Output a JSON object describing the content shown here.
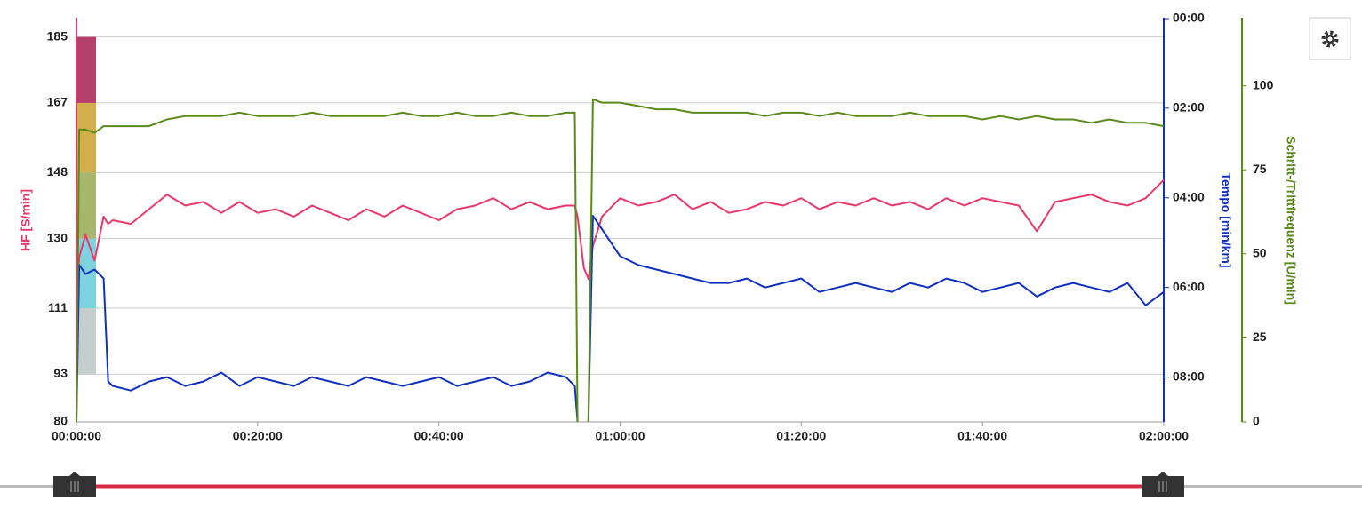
{
  "chart_data": {
    "type": "line",
    "y_label": "HF [S/min]",
    "y2_label": "Tempo [min/km]",
    "y3_label": "Schritt-/Trittfrequenz [U/min]",
    "y_color": "#e8386a",
    "y2_color": "#1030c0",
    "y3_color": "#5a8a1a",
    "xlim": [
      0,
      120
    ],
    "xticks": [
      {
        "value": 0,
        "label": "00:00:00"
      },
      {
        "value": 20,
        "label": "00:20:00"
      },
      {
        "value": 40,
        "label": "00:40:00"
      },
      {
        "value": 60,
        "label": "01:00:00"
      },
      {
        "value": 80,
        "label": "01:20:00"
      },
      {
        "value": 100,
        "label": "01:40:00"
      },
      {
        "value": 120,
        "label": "02:00:00"
      }
    ],
    "ylim": [
      80,
      190
    ],
    "yticks": [
      80,
      93,
      111,
      130,
      148,
      167,
      185
    ],
    "y2lim": [
      9,
      0
    ],
    "y2ticks": [
      {
        "value": 0,
        "label": "00:00"
      },
      {
        "value": 2,
        "label": "02:00"
      },
      {
        "value": 4,
        "label": "04:00"
      },
      {
        "value": 6,
        "label": "06:00"
      },
      {
        "value": 8,
        "label": "08:00"
      }
    ],
    "y3lim": [
      0,
      120
    ],
    "y3ticks": [
      0,
      25,
      50,
      75,
      100
    ],
    "grid": true,
    "zones": [
      {
        "from": 93,
        "to": 111,
        "color": "#c6cdcd"
      },
      {
        "from": 111,
        "to": 130,
        "color": "#7fd3e0"
      },
      {
        "from": 130,
        "to": 148,
        "color": "#a8b56c"
      },
      {
        "from": 148,
        "to": 167,
        "color": "#d2ae4c"
      },
      {
        "from": 167,
        "to": 185,
        "color": "#b5406a"
      }
    ],
    "x": [
      0,
      0.3,
      1,
      2,
      3,
      3.5,
      4,
      6,
      8,
      10,
      12,
      14,
      16,
      18,
      20,
      22,
      24,
      26,
      28,
      30,
      32,
      34,
      36,
      38,
      40,
      42,
      44,
      46,
      48,
      50,
      52,
      54,
      55,
      55.3,
      56,
      56.5,
      57,
      58,
      60,
      62,
      64,
      66,
      68,
      70,
      72,
      74,
      76,
      78,
      80,
      82,
      84,
      86,
      88,
      90,
      92,
      94,
      96,
      98,
      100,
      102,
      104,
      106,
      108,
      110,
      112,
      114,
      116,
      118,
      120
    ],
    "series": [
      {
        "axis": "y",
        "color": "#e8386a",
        "values": [
          112,
          125,
          131,
          124,
          136,
          134,
          135,
          134,
          138,
          142,
          139,
          140,
          137,
          140,
          137,
          138,
          136,
          139,
          137,
          135,
          138,
          136,
          139,
          137,
          135,
          138,
          139,
          141,
          138,
          140,
          138,
          139,
          139,
          136,
          122,
          119,
          128,
          136,
          141,
          139,
          140,
          142,
          138,
          140,
          137,
          138,
          140,
          139,
          141,
          138,
          140,
          139,
          141,
          139,
          140,
          138,
          141,
          139,
          141,
          140,
          139,
          132,
          140,
          141,
          142,
          140,
          139,
          141,
          146
        ]
      },
      {
        "axis": "y2",
        "color": "#1030c0",
        "values": [
          9,
          5.5,
          5.7,
          5.6,
          5.8,
          8.1,
          8.2,
          8.3,
          8.1,
          8.0,
          8.2,
          8.1,
          7.9,
          8.2,
          8.0,
          8.1,
          8.2,
          8.0,
          8.1,
          8.2,
          8.0,
          8.1,
          8.2,
          8.1,
          8.0,
          8.2,
          8.1,
          8.0,
          8.2,
          8.1,
          7.9,
          8.0,
          8.2,
          9,
          null,
          9,
          4.4,
          4.7,
          5.3,
          5.5,
          5.6,
          5.7,
          5.8,
          5.9,
          5.9,
          5.8,
          6.0,
          5.9,
          5.8,
          6.1,
          6.0,
          5.9,
          6.0,
          6.1,
          5.9,
          6.0,
          5.8,
          5.9,
          6.1,
          6.0,
          5.9,
          6.2,
          6.0,
          5.9,
          6.0,
          6.1,
          5.9,
          6.4,
          6.1
        ]
      },
      {
        "axis": "y3",
        "color": "#5a8a1a",
        "values": [
          0,
          87,
          87,
          86,
          88,
          88,
          88,
          88,
          88,
          90,
          91,
          91,
          91,
          92,
          91,
          91,
          91,
          92,
          91,
          91,
          91,
          91,
          92,
          91,
          91,
          92,
          91,
          91,
          92,
          91,
          91,
          92,
          92,
          0,
          null,
          0,
          96,
          95,
          95,
          94,
          93,
          93,
          92,
          92,
          92,
          92,
          91,
          92,
          92,
          91,
          92,
          91,
          91,
          91,
          92,
          91,
          91,
          91,
          90,
          91,
          90,
          91,
          90,
          90,
          89,
          90,
          89,
          89,
          88
        ]
      }
    ]
  }
}
